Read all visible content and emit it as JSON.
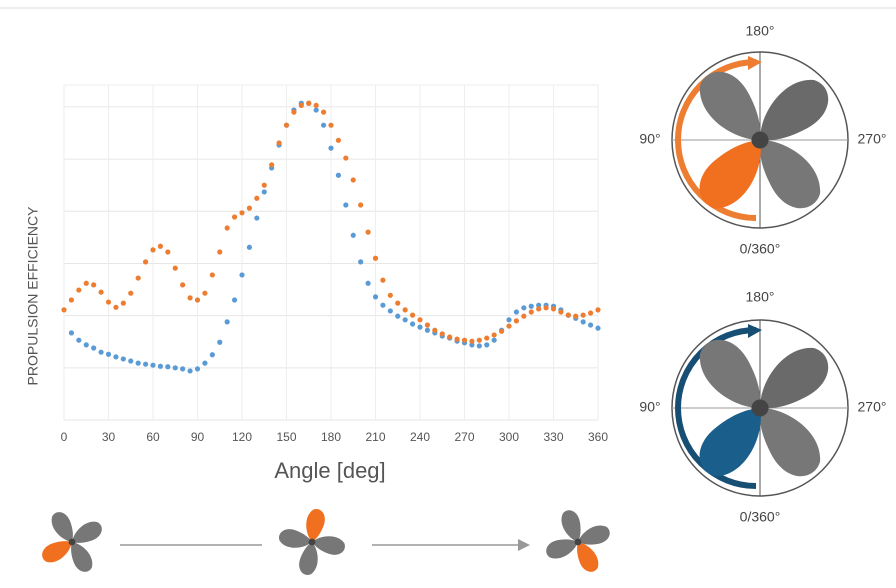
{
  "chart_data": {
    "type": "scatter",
    "x_label": "Angle [deg]",
    "y_label": "PROPULSION EFFICIENCY",
    "x": [
      0,
      5,
      10,
      15,
      20,
      25,
      30,
      35,
      40,
      45,
      50,
      55,
      60,
      65,
      70,
      75,
      80,
      85,
      90,
      95,
      100,
      105,
      110,
      115,
      120,
      125,
      130,
      135,
      140,
      145,
      150,
      155,
      160,
      165,
      170,
      175,
      180,
      185,
      190,
      195,
      200,
      205,
      210,
      215,
      220,
      225,
      230,
      235,
      240,
      245,
      250,
      255,
      260,
      265,
      270,
      275,
      280,
      285,
      290,
      295,
      300,
      305,
      310,
      315,
      320,
      325,
      330,
      335,
      340,
      345,
      350,
      355,
      360
    ],
    "series": [
      {
        "color": "#ed7d31",
        "values": [
          2.11,
          2.3,
          2.49,
          2.62,
          2.59,
          2.45,
          2.26,
          2.16,
          2.24,
          2.43,
          2.72,
          3.03,
          3.26,
          3.33,
          3.22,
          2.91,
          2.59,
          2.34,
          2.3,
          2.43,
          2.78,
          3.22,
          3.68,
          3.89,
          3.97,
          4.06,
          4.25,
          4.5,
          4.89,
          5.31,
          5.65,
          5.9,
          6.03,
          6.07,
          6.03,
          5.9,
          5.65,
          5.36,
          5.02,
          4.6,
          4.12,
          3.6,
          3.1,
          2.68,
          2.39,
          2.24,
          2.11,
          2.01,
          1.92,
          1.82,
          1.72,
          1.65,
          1.59,
          1.55,
          1.53,
          1.51,
          1.53,
          1.57,
          1.63,
          1.7,
          1.8,
          1.9,
          1.99,
          2.07,
          2.13,
          2.15,
          2.13,
          2.07,
          2.01,
          1.99,
          2.01,
          2.05,
          2.11
        ]
      },
      {
        "color": "#5b9bd5",
        "values": [
          null,
          1.67,
          1.53,
          1.44,
          1.38,
          1.3,
          1.26,
          1.21,
          1.17,
          1.13,
          1.09,
          1.07,
          1.05,
          1.03,
          1.02,
          1.0,
          0.98,
          0.94,
          0.98,
          1.09,
          1.25,
          1.49,
          1.88,
          2.3,
          2.78,
          3.31,
          3.87,
          4.37,
          4.83,
          5.27,
          5.65,
          5.94,
          6.07,
          6.07,
          5.94,
          5.65,
          5.21,
          4.69,
          4.12,
          3.54,
          3.03,
          2.62,
          2.36,
          2.2,
          2.09,
          1.99,
          1.92,
          1.84,
          1.78,
          1.72,
          1.67,
          1.61,
          1.57,
          1.51,
          1.48,
          1.44,
          1.42,
          1.44,
          1.53,
          1.72,
          1.92,
          2.07,
          2.15,
          2.18,
          2.2,
          2.2,
          2.18,
          2.11,
          2.01,
          1.95,
          1.88,
          1.82,
          1.76
        ]
      }
    ],
    "xlim": [
      0,
      360
    ],
    "xticks": [
      0,
      30,
      60,
      90,
      120,
      150,
      180,
      210,
      240,
      270,
      300,
      330,
      360
    ],
    "ylim": [
      0,
      6.42
    ],
    "yticks": [
      0,
      1,
      2,
      3,
      4,
      5,
      6
    ],
    "grid": true
  },
  "diagrams": [
    {
      "labels": [
        "180°",
        "90°",
        "270°",
        "0/360°"
      ]
    },
    {
      "labels": [
        "180°",
        "90°",
        "270°",
        "0/360°"
      ]
    }
  ]
}
